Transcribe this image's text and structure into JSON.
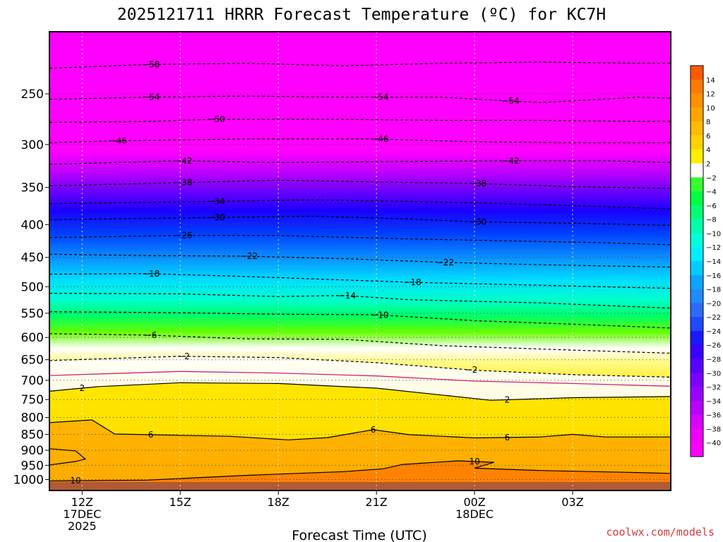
{
  "chart_data": {
    "type": "heatmap",
    "title": "2025121711 HRRR Forecast Temperature (ºC) for KC7H",
    "xlabel": "Forecast Time (UTC)",
    "ylabel": "",
    "credit": "coolwx.com/models",
    "y_levels": [
      250,
      300,
      350,
      400,
      450,
      500,
      550,
      600,
      650,
      700,
      750,
      800,
      850,
      900,
      950,
      1000
    ],
    "ylim": [
      1040,
      200
    ],
    "x_hours": [
      11,
      30
    ],
    "x_ticks": [
      {
        "hour": 12,
        "lines": [
          "12Z",
          "17DEC",
          "2025"
        ]
      },
      {
        "hour": 15,
        "lines": [
          "15Z"
        ]
      },
      {
        "hour": 18,
        "lines": [
          "18Z"
        ]
      },
      {
        "hour": 21,
        "lines": [
          "21Z"
        ]
      },
      {
        "hour": 24,
        "lines": [
          "00Z",
          "18DEC"
        ]
      },
      {
        "hour": 27,
        "lines": [
          "03Z"
        ]
      }
    ],
    "colorbar_levels": [
      14,
      12,
      10,
      8,
      6,
      4,
      2,
      -2,
      -4,
      -6,
      -8,
      -10,
      -12,
      -14,
      -16,
      -18,
      -20,
      -22,
      -24,
      -26,
      -28,
      -30,
      -32,
      -34,
      -36,
      -38,
      -40
    ],
    "contours": [
      {
        "value": -58,
        "labels": [
          {
            "hour": 14.1,
            "text": "-58"
          }
        ],
        "dash": true,
        "points": [
          [
            11,
            228
          ],
          [
            14,
            225
          ],
          [
            17,
            224
          ],
          [
            20,
            226
          ],
          [
            23,
            224
          ],
          [
            26,
            223
          ],
          [
            29,
            224
          ],
          [
            30,
            224
          ]
        ]
      },
      {
        "value": -54,
        "labels": [
          {
            "hour": 14.1,
            "text": "-54"
          },
          {
            "hour": 21.1,
            "text": "-54"
          },
          {
            "hour": 25.1,
            "text": "-54"
          }
        ],
        "dash": true,
        "points": [
          [
            11,
            255
          ],
          [
            14,
            253
          ],
          [
            17,
            252
          ],
          [
            20,
            253
          ],
          [
            23,
            253
          ],
          [
            26,
            258
          ],
          [
            29,
            253
          ],
          [
            30,
            254
          ]
        ]
      },
      {
        "value": -50,
        "labels": [
          {
            "hour": 16.1,
            "text": "-50"
          }
        ],
        "dash": true,
        "points": [
          [
            11,
            277
          ],
          [
            14,
            276
          ],
          [
            16,
            274
          ],
          [
            20,
            274
          ],
          [
            23,
            275
          ],
          [
            26,
            275
          ],
          [
            29,
            276
          ],
          [
            30,
            276
          ]
        ]
      },
      {
        "value": -46,
        "labels": [
          {
            "hour": 13.1,
            "text": "-46"
          },
          {
            "hour": 21.1,
            "text": "-46"
          }
        ],
        "dash": true,
        "points": [
          [
            11,
            298
          ],
          [
            13,
            296
          ],
          [
            17,
            294
          ],
          [
            21,
            294
          ],
          [
            24,
            297
          ],
          [
            27,
            298
          ],
          [
            30,
            298
          ]
        ]
      },
      {
        "value": -42,
        "labels": [
          {
            "hour": 15.1,
            "text": "-42"
          },
          {
            "hour": 25.1,
            "text": "-42"
          }
        ],
        "dash": true,
        "points": [
          [
            11,
            322
          ],
          [
            15,
            318
          ],
          [
            18,
            320
          ],
          [
            21,
            319
          ],
          [
            25,
            318
          ],
          [
            28,
            318
          ],
          [
            30,
            320
          ]
        ]
      },
      {
        "value": -38,
        "labels": [
          {
            "hour": 15.1,
            "text": "-38"
          },
          {
            "hour": 24.1,
            "text": "-38"
          }
        ],
        "dash": true,
        "points": [
          [
            11,
            348
          ],
          [
            15,
            344
          ],
          [
            18,
            341
          ],
          [
            21,
            343
          ],
          [
            24,
            345
          ],
          [
            27,
            349
          ],
          [
            30,
            351
          ]
        ]
      },
      {
        "value": -34,
        "labels": [
          {
            "hour": 16.1,
            "text": "-34"
          }
        ],
        "dash": true,
        "points": [
          [
            11,
            371
          ],
          [
            16,
            368
          ],
          [
            19,
            366
          ],
          [
            22,
            368
          ],
          [
            25,
            371
          ],
          [
            28,
            375
          ],
          [
            30,
            378
          ]
        ]
      },
      {
        "value": -30,
        "labels": [
          {
            "hour": 16.1,
            "text": "-30"
          },
          {
            "hour": 24.1,
            "text": "-30"
          }
        ],
        "dash": true,
        "points": [
          [
            11,
            393
          ],
          [
            16,
            390
          ],
          [
            19,
            388
          ],
          [
            22,
            392
          ],
          [
            24,
            396
          ],
          [
            27,
            398
          ],
          [
            30,
            401
          ]
        ]
      },
      {
        "value": -26,
        "labels": [
          {
            "hour": 15.1,
            "text": "-26"
          }
        ],
        "dash": true,
        "points": [
          [
            11,
            419
          ],
          [
            15,
            416
          ],
          [
            18,
            416
          ],
          [
            22,
            421
          ],
          [
            25,
            424
          ],
          [
            28,
            427
          ],
          [
            30,
            430
          ]
        ]
      },
      {
        "value": -22,
        "labels": [
          {
            "hour": 17.1,
            "text": "-22"
          },
          {
            "hour": 23.1,
            "text": "-22"
          }
        ],
        "dash": true,
        "points": [
          [
            11,
            445
          ],
          [
            14,
            447
          ],
          [
            17,
            448
          ],
          [
            20,
            452
          ],
          [
            23,
            458
          ],
          [
            26,
            462
          ],
          [
            30,
            466
          ]
        ]
      },
      {
        "value": -18,
        "labels": [
          {
            "hour": 14.1,
            "text": "-18"
          },
          {
            "hour": 22.1,
            "text": "-18"
          }
        ],
        "dash": true,
        "points": [
          [
            11,
            478
          ],
          [
            14,
            477
          ],
          [
            17,
            482
          ],
          [
            20,
            488
          ],
          [
            22,
            492
          ],
          [
            25,
            496
          ],
          [
            30,
            503
          ]
        ]
      },
      {
        "value": -14,
        "labels": [
          {
            "hour": 20.1,
            "text": "-14"
          }
        ],
        "dash": true,
        "points": [
          [
            11,
            512
          ],
          [
            15,
            513
          ],
          [
            18,
            518
          ],
          [
            20,
            516
          ],
          [
            22,
            524
          ],
          [
            26,
            530
          ],
          [
            30,
            540
          ]
        ]
      },
      {
        "value": -10,
        "labels": [
          {
            "hour": 21.1,
            "text": "-10"
          }
        ],
        "dash": true,
        "points": [
          [
            11,
            547
          ],
          [
            15,
            549
          ],
          [
            18,
            552
          ],
          [
            21,
            553
          ],
          [
            24,
            565
          ],
          [
            27,
            572
          ],
          [
            30,
            580
          ]
        ]
      },
      {
        "value": -6,
        "labels": [
          {
            "hour": 14.1,
            "text": "-6"
          }
        ],
        "dash": true,
        "points": [
          [
            11,
            592
          ],
          [
            14,
            595
          ],
          [
            17,
            603
          ],
          [
            20,
            604
          ],
          [
            23,
            618
          ],
          [
            27,
            628
          ],
          [
            30,
            635
          ]
        ]
      },
      {
        "value": -2,
        "labels": [
          {
            "hour": 15.1,
            "text": "-2"
          },
          {
            "hour": 23.9,
            "text": "-2"
          }
        ],
        "dash": true,
        "points": [
          [
            11,
            652
          ],
          [
            15,
            642
          ],
          [
            18,
            645
          ],
          [
            21,
            657
          ],
          [
            24,
            675
          ],
          [
            27,
            686
          ],
          [
            30,
            692
          ]
        ]
      },
      {
        "value": 0,
        "labels": [],
        "dash": false,
        "color": "#cc2277",
        "points": [
          [
            11,
            688
          ],
          [
            15,
            678
          ],
          [
            18,
            682
          ],
          [
            21,
            689
          ],
          [
            24,
            702
          ],
          [
            27,
            708
          ],
          [
            30,
            715
          ]
        ]
      },
      {
        "value": 2,
        "labels": [
          {
            "hour": 12.0,
            "text": "2"
          },
          {
            "hour": 25.0,
            "text": "2"
          }
        ],
        "dash": false,
        "points": [
          [
            11,
            728
          ],
          [
            12.5,
            716
          ],
          [
            15,
            706
          ],
          [
            18,
            708
          ],
          [
            21,
            720
          ],
          [
            23,
            738
          ],
          [
            24.5,
            752
          ],
          [
            27,
            745
          ],
          [
            30,
            742
          ]
        ]
      },
      {
        "value": 6,
        "labels": [
          {
            "hour": 14.1,
            "text": "6"
          },
          {
            "hour": 20.9,
            "text": "6"
          },
          {
            "hour": 25.0,
            "text": "6"
          }
        ],
        "dash": false,
        "points": [
          [
            11,
            815
          ],
          [
            12.3,
            807
          ],
          [
            13,
            849
          ],
          [
            14,
            851
          ],
          [
            16.5,
            856
          ],
          [
            18.3,
            867
          ],
          [
            19.5,
            860
          ],
          [
            20.9,
            836
          ],
          [
            22,
            851
          ],
          [
            24,
            861
          ],
          [
            26,
            858
          ],
          [
            27,
            850
          ],
          [
            28,
            858
          ],
          [
            30,
            858
          ]
        ]
      },
      {
        "value": 8,
        "labels": [],
        "dash": false,
        "points": [
          [
            11,
            895
          ],
          [
            11.8,
            902
          ],
          [
            12.1,
            929
          ],
          [
            11.8,
            937
          ],
          [
            11,
            949
          ]
        ]
      },
      {
        "value": 10,
        "labels": [
          {
            "hour": 11.8,
            "text": "10"
          },
          {
            "hour": 24.0,
            "text": "10"
          }
        ],
        "dash": false,
        "points": [
          [
            11,
            1005
          ],
          [
            14,
            1002
          ],
          [
            17,
            985
          ],
          [
            20,
            972
          ],
          [
            21.2,
            962
          ],
          [
            21.8,
            947
          ],
          [
            23.5,
            935
          ],
          [
            24.6,
            940
          ],
          [
            24.0,
            960
          ],
          [
            26,
            968
          ],
          [
            29,
            975
          ],
          [
            30,
            978
          ]
        ]
      }
    ]
  }
}
